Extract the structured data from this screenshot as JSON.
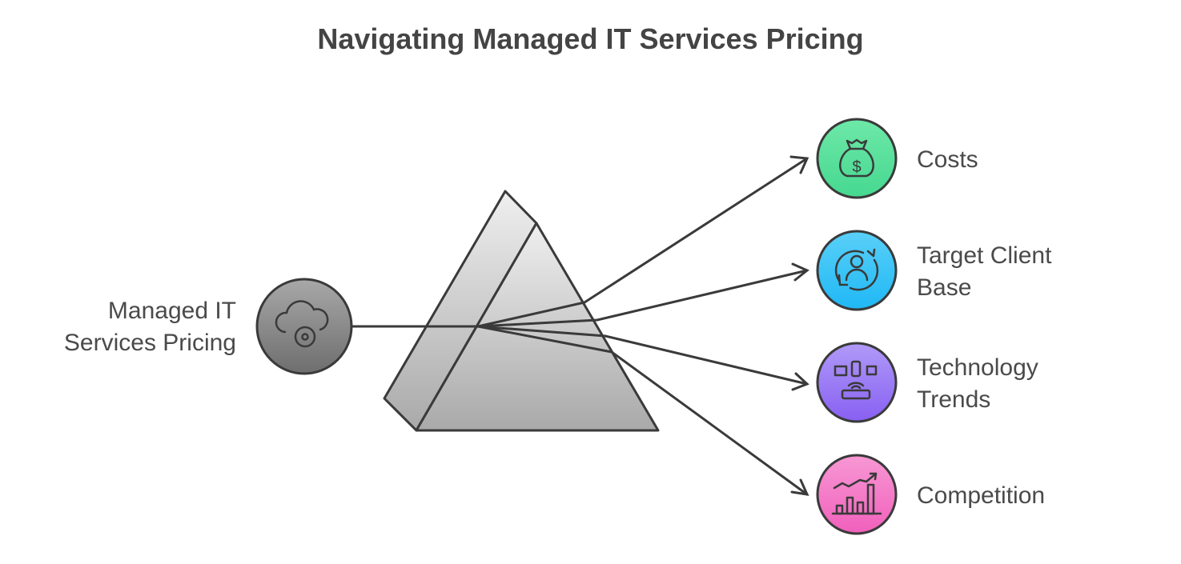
{
  "title": "Navigating Managed IT Services Pricing",
  "source": {
    "label_line1": "Managed IT",
    "label_line2": "Services Pricing",
    "icon": "cloud-gear-icon",
    "color": "#8a8a8a"
  },
  "outputs": [
    {
      "label_line1": "Costs",
      "label_line2": "",
      "icon": "money-bag-icon",
      "color": "#5ee0a0"
    },
    {
      "label_line1": "Target Client",
      "label_line2": "Base",
      "icon": "user-cycle-icon",
      "color": "#3cc4f5"
    },
    {
      "label_line1": "Technology",
      "label_line2": "Trends",
      "icon": "devices-router-icon",
      "color": "#9b7cf5"
    },
    {
      "label_line1": "Competition",
      "label_line2": "",
      "icon": "growth-chart-icon",
      "color": "#f57cc8"
    }
  ]
}
